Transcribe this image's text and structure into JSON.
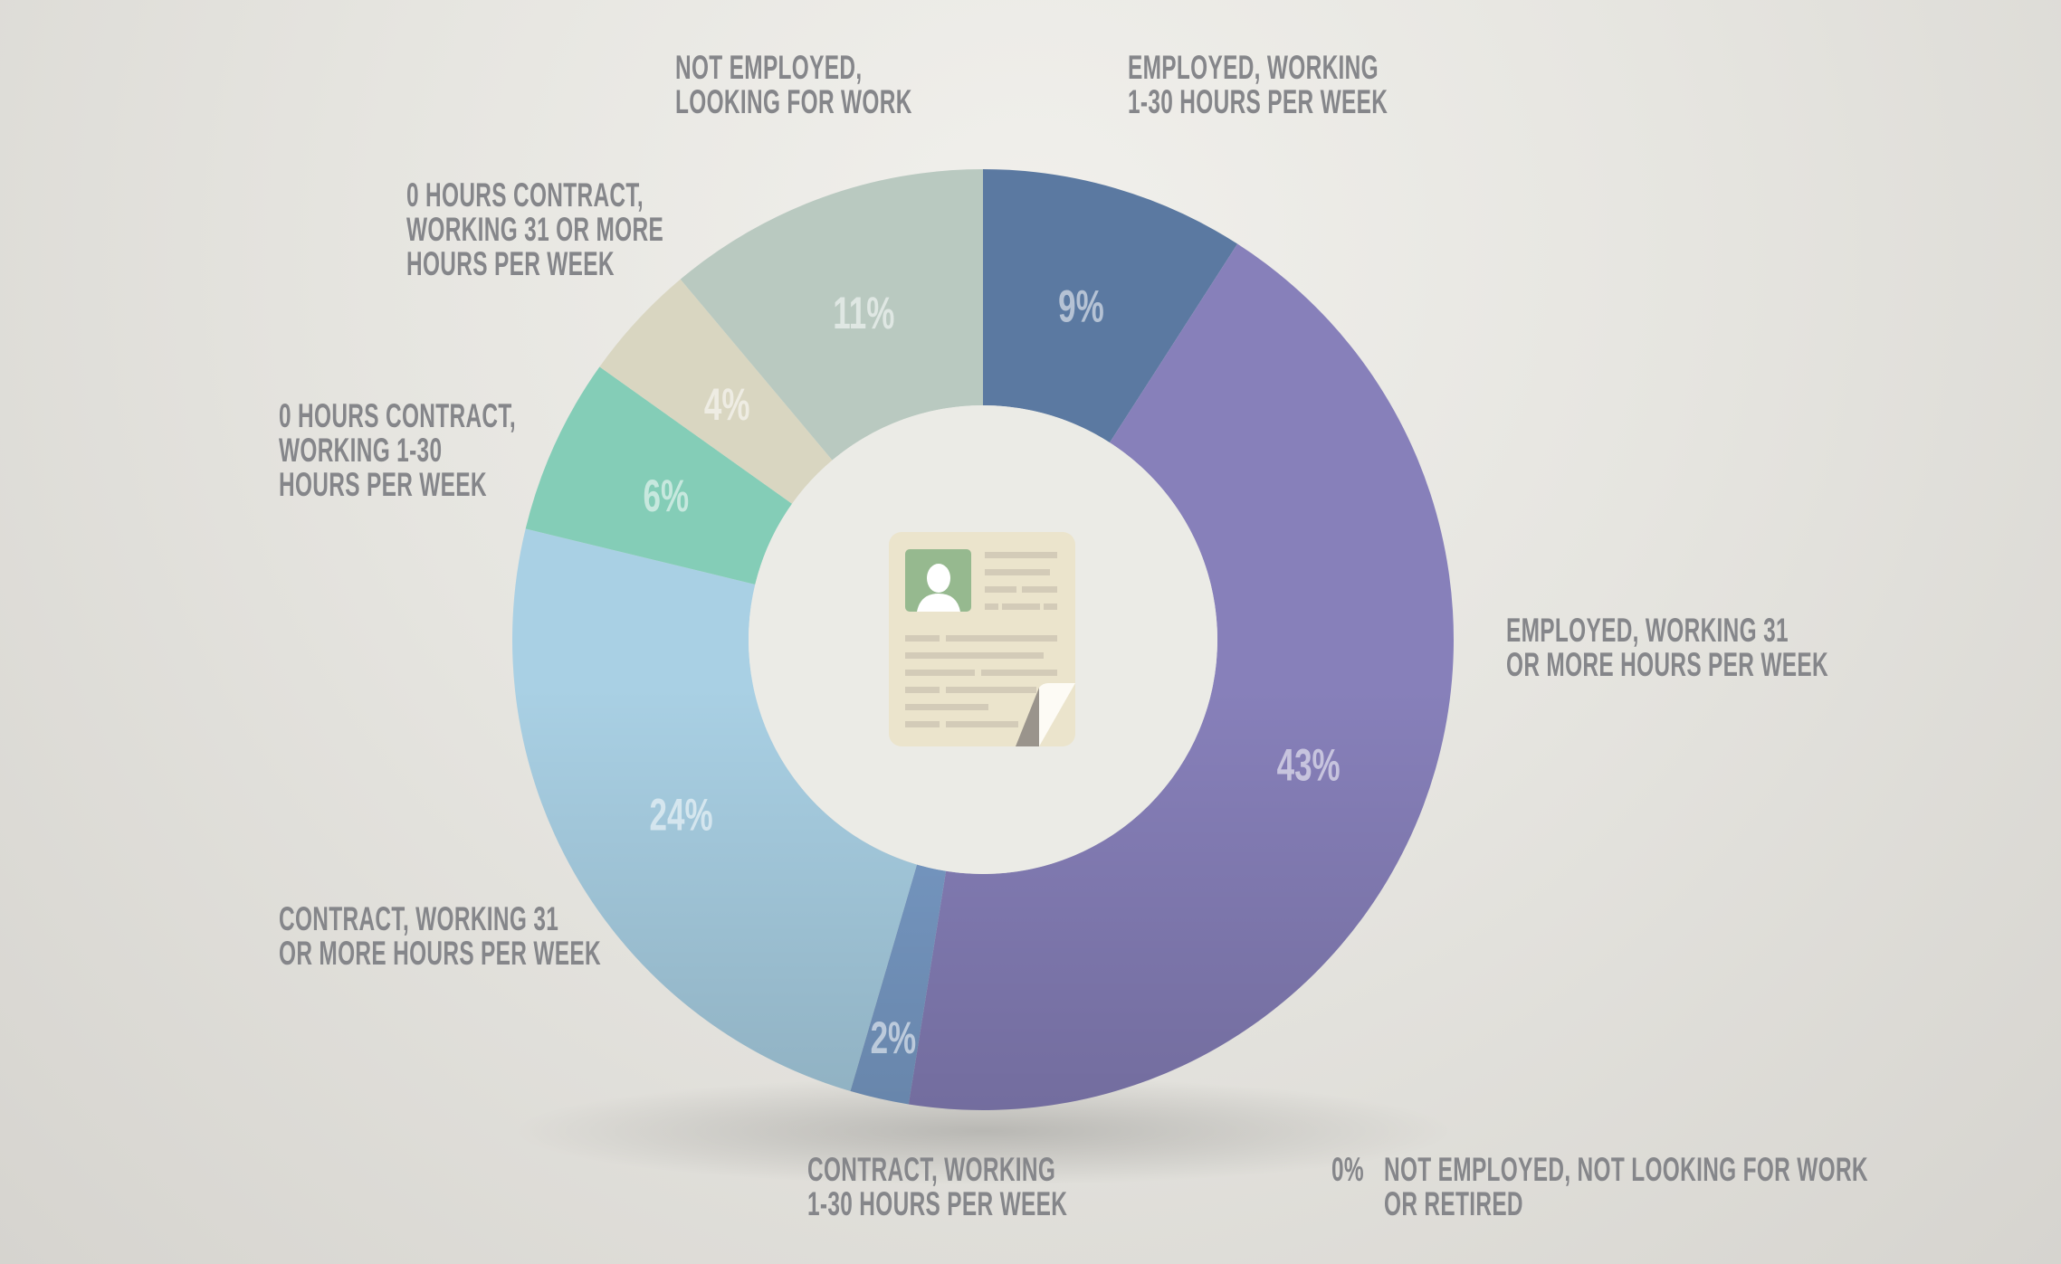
{
  "chart_data": {
    "type": "pie",
    "donut": true,
    "slices": [
      {
        "label": [
          "Employed, working",
          "1-30 hours per week"
        ],
        "value": 9,
        "pct_label": "9%",
        "color": "#5b79a1"
      },
      {
        "label": [
          "Employed, working 31",
          "or more hours per week"
        ],
        "value": 43,
        "pct_label": "43%",
        "color": "#8780ba"
      },
      {
        "label": [
          "Contract, working",
          "1-30 hours per week"
        ],
        "value": 2,
        "pct_label": "2%",
        "color": "#7a9dc9"
      },
      {
        "label": [
          "Contract, working 31",
          "or more hours per week"
        ],
        "value": 24,
        "pct_label": "24%",
        "color": "#a9d0e4"
      },
      {
        "label": [
          "0 hours contract,",
          "working 1-30",
          "hours per week"
        ],
        "value": 6,
        "pct_label": "6%",
        "color": "#84cdb7"
      },
      {
        "label": [
          "0 hours contract,",
          "working 31 or more",
          "hours per week"
        ],
        "value": 4,
        "pct_label": "4%",
        "color": "#d9d6c1"
      },
      {
        "label": [
          "Not employed,",
          "looking for work"
        ],
        "value": 11,
        "pct_label": "11%",
        "color": "#b9c9c0"
      },
      {
        "label": [
          "Not employed, not looking for work",
          "or retired"
        ],
        "value": 0,
        "pct_label": "0%",
        "color": "#85868a"
      }
    ],
    "center_icon": "resume-document-icon",
    "legend": "none"
  }
}
